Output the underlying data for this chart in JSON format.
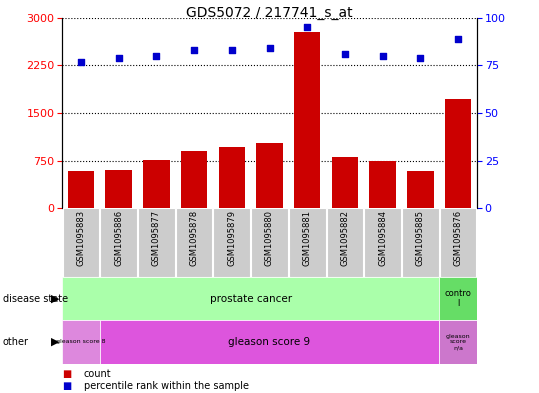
{
  "title": "GDS5072 / 217741_s_at",
  "samples": [
    "GSM1095883",
    "GSM1095886",
    "GSM1095877",
    "GSM1095878",
    "GSM1095879",
    "GSM1095880",
    "GSM1095881",
    "GSM1095882",
    "GSM1095884",
    "GSM1095885",
    "GSM1095876"
  ],
  "counts": [
    580,
    600,
    760,
    900,
    960,
    1020,
    2780,
    800,
    750,
    580,
    1720
  ],
  "percentiles": [
    77,
    79,
    80,
    83,
    83,
    84,
    95,
    81,
    80,
    79,
    89
  ],
  "ylim_left": [
    0,
    3000
  ],
  "ylim_right": [
    0,
    100
  ],
  "yticks_left": [
    0,
    750,
    1500,
    2250,
    3000
  ],
  "yticks_right": [
    0,
    25,
    50,
    75,
    100
  ],
  "bar_color": "#cc0000",
  "dot_color": "#0000cc",
  "disease_state_labels": [
    "prostate cancer",
    "contro\nl"
  ],
  "disease_state_colors": [
    "#aaffaa",
    "#66dd66"
  ],
  "other_labels": [
    "gleason score 8",
    "gleason score 9",
    "gleason\nscore\nn/a"
  ],
  "other_colors_gs8": "#dd88dd",
  "other_colors_gs9": "#dd55dd",
  "other_colors_gsna": "#cc77cc",
  "background_color": "#ffffff",
  "plot_bg_color": "#ffffff",
  "tick_label_bg": "#cccccc",
  "grid_color": "#000000",
  "title_fontsize": 10,
  "axis_fontsize": 8,
  "sample_fontsize": 6,
  "label_fontsize": 7,
  "legend_fontsize": 7
}
